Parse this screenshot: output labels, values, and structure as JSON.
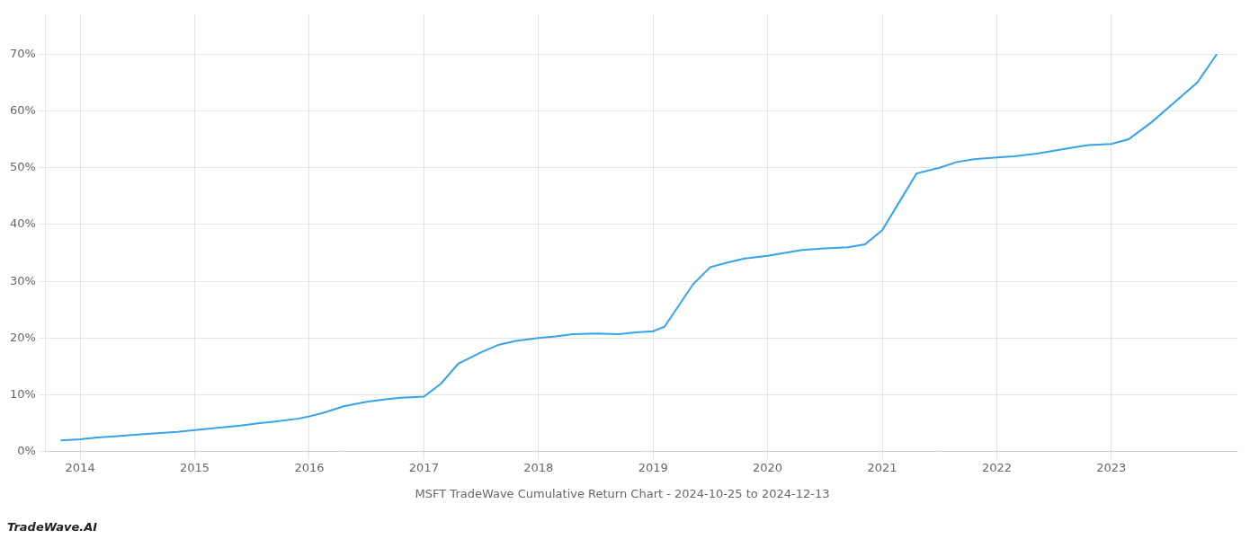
{
  "chart_data": {
    "type": "line",
    "title": "MSFT TradeWave Cumulative Return Chart - 2024-10-25 to 2024-12-13",
    "annotations": [
      "TradeWave.AI"
    ],
    "x": [
      2013.83,
      2014.0,
      2014.15,
      2014.3,
      2014.5,
      2014.7,
      2014.85,
      2015.0,
      2015.2,
      2015.4,
      2015.55,
      2015.7,
      2015.9,
      2016.0,
      2016.15,
      2016.3,
      2016.5,
      2016.65,
      2016.8,
      2017.0,
      2017.15,
      2017.3,
      2017.5,
      2017.65,
      2017.8,
      2018.0,
      2018.15,
      2018.3,
      2018.5,
      2018.7,
      2018.85,
      2019.0,
      2019.1,
      2019.2,
      2019.35,
      2019.5,
      2019.65,
      2019.8,
      2020.0,
      2020.15,
      2020.3,
      2020.5,
      2020.7,
      2020.85,
      2021.0,
      2021.15,
      2021.3,
      2021.5,
      2021.65,
      2021.8,
      2022.0,
      2022.15,
      2022.35,
      2022.5,
      2022.65,
      2022.8,
      2023.0,
      2023.15,
      2023.35,
      2023.55,
      2023.75,
      2023.92
    ],
    "values": [
      0.02,
      0.022,
      0.025,
      0.027,
      0.03,
      0.033,
      0.035,
      0.038,
      0.042,
      0.046,
      0.05,
      0.053,
      0.058,
      0.062,
      0.07,
      0.08,
      0.088,
      0.092,
      0.095,
      0.097,
      0.12,
      0.155,
      0.175,
      0.188,
      0.195,
      0.2,
      0.203,
      0.207,
      0.208,
      0.207,
      0.21,
      0.212,
      0.22,
      0.25,
      0.295,
      0.325,
      0.333,
      0.34,
      0.345,
      0.35,
      0.355,
      0.358,
      0.36,
      0.365,
      0.39,
      0.44,
      0.49,
      0.5,
      0.51,
      0.515,
      0.518,
      0.52,
      0.525,
      0.53,
      0.535,
      0.54,
      0.542,
      0.55,
      0.58,
      0.615,
      0.65,
      0.7
    ],
    "xlim": [
      2013.7,
      2024.1
    ],
    "xticks": [
      2014,
      2015,
      2016,
      2017,
      2018,
      2019,
      2020,
      2021,
      2022,
      2023
    ],
    "ylim": [
      0.0,
      0.77
    ],
    "yticks": [
      {
        "value": 0.0,
        "label": "0%"
      },
      {
        "value": 0.1,
        "label": "10%"
      },
      {
        "value": 0.2,
        "label": "20%"
      },
      {
        "value": 0.3,
        "label": "30%"
      },
      {
        "value": 0.4,
        "label": "40%"
      },
      {
        "value": 0.5,
        "label": "50%"
      },
      {
        "value": 0.6,
        "label": "60%"
      },
      {
        "value": 0.7,
        "label": "70%"
      }
    ],
    "grid": true
  }
}
